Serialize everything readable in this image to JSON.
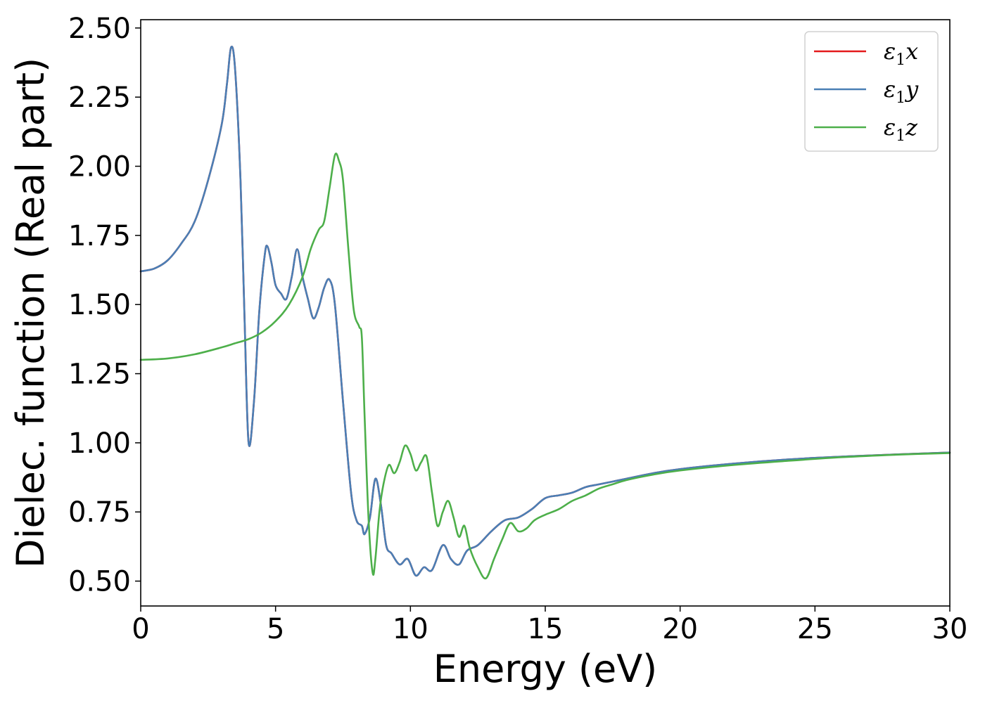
{
  "chart_data": {
    "type": "line",
    "xlabel": "Energy (eV)",
    "ylabel": "Dielec. function (Real part)",
    "xlim": [
      0,
      30
    ],
    "ylim": [
      0.41,
      2.53
    ],
    "xticks": [
      0,
      5,
      10,
      15,
      20,
      25,
      30
    ],
    "yticks": [
      0.5,
      0.75,
      1.0,
      1.25,
      1.5,
      1.75,
      2.0,
      2.25,
      2.5
    ],
    "ytick_labels": [
      "0.50",
      "0.75",
      "1.00",
      "1.25",
      "1.50",
      "1.75",
      "2.00",
      "2.25",
      "2.50"
    ],
    "grid": false,
    "legend_position": "top-right",
    "series": [
      {
        "name": "ε₁x",
        "legend_base": "ε",
        "legend_sub": "1",
        "legend_suffix": "x",
        "color": "#e41a1c",
        "x": [
          0,
          0.5,
          1,
          1.5,
          2,
          2.5,
          3,
          3.2,
          3.35,
          3.5,
          3.7,
          3.85,
          4.0,
          4.2,
          4.4,
          4.6,
          4.7,
          4.85,
          5.0,
          5.2,
          5.4,
          5.6,
          5.8,
          6.0,
          6.2,
          6.4,
          6.6,
          6.8,
          7.0,
          7.2,
          7.5,
          7.8,
          8.0,
          8.2,
          8.3,
          8.5,
          8.7,
          8.9,
          9.1,
          9.3,
          9.6,
          9.9,
          10.2,
          10.5,
          10.8,
          11.2,
          11.5,
          11.8,
          12.1,
          12.5,
          13.0,
          13.5,
          14.0,
          14.5,
          15.0,
          15.5,
          16.0,
          16.5,
          17.0,
          17.5,
          18,
          19,
          20,
          22,
          24,
          26,
          28,
          30
        ],
        "values": [
          1.62,
          1.63,
          1.66,
          1.72,
          1.8,
          1.95,
          2.15,
          2.3,
          2.43,
          2.35,
          1.95,
          1.45,
          1.0,
          1.15,
          1.48,
          1.68,
          1.71,
          1.65,
          1.57,
          1.54,
          1.52,
          1.6,
          1.7,
          1.6,
          1.52,
          1.45,
          1.49,
          1.56,
          1.59,
          1.5,
          1.15,
          0.82,
          0.72,
          0.7,
          0.67,
          0.73,
          0.87,
          0.78,
          0.63,
          0.6,
          0.56,
          0.58,
          0.52,
          0.55,
          0.54,
          0.63,
          0.58,
          0.56,
          0.61,
          0.63,
          0.68,
          0.72,
          0.73,
          0.76,
          0.8,
          0.81,
          0.82,
          0.84,
          0.85,
          0.86,
          0.87,
          0.89,
          0.905,
          0.925,
          0.94,
          0.95,
          0.958,
          0.965
        ]
      },
      {
        "name": "ε₁y",
        "legend_base": "ε",
        "legend_sub": "1",
        "legend_suffix": "y",
        "color": "#4a7fb5",
        "x": [
          0,
          0.5,
          1,
          1.5,
          2,
          2.5,
          3,
          3.2,
          3.35,
          3.5,
          3.7,
          3.85,
          4.0,
          4.2,
          4.4,
          4.6,
          4.7,
          4.85,
          5.0,
          5.2,
          5.4,
          5.6,
          5.8,
          6.0,
          6.2,
          6.4,
          6.6,
          6.8,
          7.0,
          7.2,
          7.5,
          7.8,
          8.0,
          8.2,
          8.3,
          8.5,
          8.7,
          8.9,
          9.1,
          9.3,
          9.6,
          9.9,
          10.2,
          10.5,
          10.8,
          11.2,
          11.5,
          11.8,
          12.1,
          12.5,
          13.0,
          13.5,
          14.0,
          14.5,
          15.0,
          15.5,
          16.0,
          16.5,
          17.0,
          17.5,
          18,
          19,
          20,
          22,
          24,
          26,
          28,
          30
        ],
        "values": [
          1.62,
          1.63,
          1.66,
          1.72,
          1.8,
          1.95,
          2.15,
          2.3,
          2.43,
          2.35,
          1.95,
          1.45,
          1.0,
          1.15,
          1.48,
          1.68,
          1.71,
          1.65,
          1.57,
          1.54,
          1.52,
          1.6,
          1.7,
          1.6,
          1.52,
          1.45,
          1.49,
          1.56,
          1.59,
          1.5,
          1.15,
          0.82,
          0.72,
          0.7,
          0.67,
          0.73,
          0.87,
          0.78,
          0.63,
          0.6,
          0.56,
          0.58,
          0.52,
          0.55,
          0.54,
          0.63,
          0.58,
          0.56,
          0.61,
          0.63,
          0.68,
          0.72,
          0.73,
          0.76,
          0.8,
          0.81,
          0.82,
          0.84,
          0.85,
          0.86,
          0.87,
          0.89,
          0.905,
          0.925,
          0.94,
          0.95,
          0.958,
          0.965
        ]
      },
      {
        "name": "ε₁z",
        "legend_base": "ε",
        "legend_sub": "1",
        "legend_suffix": "z",
        "color": "#4daf4a",
        "x": [
          0,
          1,
          2,
          3,
          3.5,
          4,
          4.5,
          5,
          5.5,
          6,
          6.3,
          6.6,
          6.8,
          7.0,
          7.2,
          7.35,
          7.5,
          7.7,
          7.9,
          8.1,
          8.2,
          8.3,
          8.45,
          8.6,
          8.7,
          8.85,
          9.0,
          9.2,
          9.4,
          9.6,
          9.8,
          10.0,
          10.2,
          10.4,
          10.6,
          10.8,
          11.0,
          11.2,
          11.4,
          11.6,
          11.8,
          12.0,
          12.2,
          12.5,
          12.8,
          13.1,
          13.4,
          13.7,
          14.0,
          14.3,
          14.6,
          15.0,
          15.5,
          16.0,
          16.5,
          17.0,
          17.5,
          18,
          19,
          20,
          22,
          24,
          26,
          28,
          30
        ],
        "values": [
          1.3,
          1.305,
          1.32,
          1.345,
          1.36,
          1.375,
          1.4,
          1.44,
          1.5,
          1.6,
          1.7,
          1.77,
          1.8,
          1.92,
          2.04,
          2.02,
          1.95,
          1.7,
          1.48,
          1.42,
          1.38,
          1.1,
          0.72,
          0.53,
          0.58,
          0.75,
          0.85,
          0.92,
          0.89,
          0.93,
          0.99,
          0.96,
          0.9,
          0.93,
          0.95,
          0.82,
          0.7,
          0.75,
          0.79,
          0.73,
          0.66,
          0.7,
          0.62,
          0.55,
          0.51,
          0.58,
          0.65,
          0.71,
          0.68,
          0.69,
          0.72,
          0.74,
          0.76,
          0.79,
          0.81,
          0.835,
          0.85,
          0.865,
          0.885,
          0.9,
          0.92,
          0.935,
          0.948,
          0.957,
          0.963
        ]
      }
    ]
  }
}
